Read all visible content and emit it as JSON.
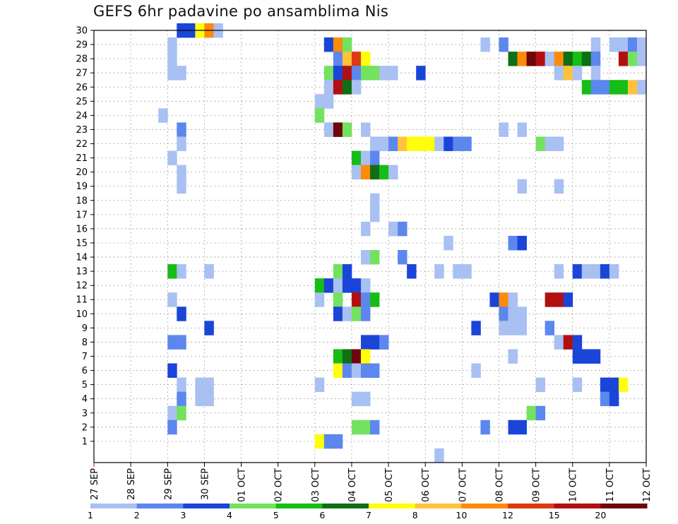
{
  "title": "GEFS 6hr padavine po ansamblima Nis",
  "chart_data": {
    "type": "heatmap",
    "title": "GEFS 6hr padavine po ansamblima Nis",
    "y_categories": [
      "1",
      "2",
      "3",
      "4",
      "5",
      "6",
      "7",
      "8",
      "9",
      "10",
      "11",
      "12",
      "13",
      "14",
      "15",
      "16",
      "17",
      "18",
      "19",
      "20",
      "21",
      "22",
      "23",
      "24",
      "25",
      "26",
      "27",
      "28",
      "29",
      "30"
    ],
    "x_tick_labels": [
      "27 SEP",
      "28 SEP",
      "29 SEP",
      "30 SEP",
      "01 OCT",
      "02 OCT",
      "03 OCT",
      "04 OCT",
      "05 OCT",
      "06 OCT",
      "07 OCT",
      "08 OCT",
      "09 OCT",
      "10 OCT",
      "11 OCT",
      "12 OCT"
    ],
    "x_unit": "6hr steps from 27 SEP 00Z",
    "xlim_steps": [
      0,
      60
    ],
    "grid": "dotted",
    "legend": {
      "position": "bottom",
      "labels": [
        "1",
        "2",
        "3",
        "4",
        "5",
        "6",
        "7",
        "8",
        "10",
        "12",
        "15",
        "20"
      ],
      "colors": [
        "#a9c0f2",
        "#5b87ee",
        "#1a45d8",
        "#73e25e",
        "#16bd16",
        "#0f6f14",
        "#ffff0a",
        "#ffc23a",
        "#ff8a0a",
        "#dc3a12",
        "#b21010",
        "#6e0707"
      ]
    },
    "cells": [
      [
        30,
        9,
        2
      ],
      [
        30,
        10,
        2
      ],
      [
        30,
        11,
        6
      ],
      [
        30,
        12,
        8
      ],
      [
        30,
        13,
        0
      ],
      [
        29,
        8,
        0
      ],
      [
        29,
        25,
        2
      ],
      [
        29,
        26,
        8
      ],
      [
        29,
        27,
        3
      ],
      [
        29,
        42,
        0
      ],
      [
        29,
        44,
        1
      ],
      [
        29,
        54,
        0
      ],
      [
        29,
        56,
        0
      ],
      [
        29,
        57,
        0
      ],
      [
        29,
        58,
        1
      ],
      [
        29,
        59,
        0
      ],
      [
        28,
        8,
        0
      ],
      [
        28,
        26,
        1
      ],
      [
        28,
        27,
        7
      ],
      [
        28,
        28,
        9
      ],
      [
        28,
        29,
        6
      ],
      [
        28,
        45,
        5
      ],
      [
        28,
        46,
        8
      ],
      [
        28,
        47,
        11
      ],
      [
        28,
        48,
        10
      ],
      [
        28,
        49,
        0
      ],
      [
        28,
        50,
        8
      ],
      [
        28,
        51,
        5
      ],
      [
        28,
        52,
        4
      ],
      [
        28,
        53,
        5
      ],
      [
        28,
        54,
        1
      ],
      [
        28,
        57,
        10
      ],
      [
        28,
        58,
        3
      ],
      [
        28,
        59,
        0
      ],
      [
        27,
        8,
        0
      ],
      [
        27,
        9,
        0
      ],
      [
        27,
        25,
        3
      ],
      [
        27,
        26,
        2
      ],
      [
        27,
        27,
        10
      ],
      [
        27,
        28,
        1
      ],
      [
        27,
        29,
        3
      ],
      [
        27,
        30,
        3
      ],
      [
        27,
        31,
        0
      ],
      [
        27,
        32,
        0
      ],
      [
        27,
        35,
        2
      ],
      [
        27,
        50,
        0
      ],
      [
        27,
        51,
        7
      ],
      [
        27,
        52,
        0
      ],
      [
        27,
        54,
        0
      ],
      [
        26,
        25,
        0
      ],
      [
        26,
        26,
        10
      ],
      [
        26,
        27,
        5
      ],
      [
        26,
        28,
        0
      ],
      [
        26,
        53,
        4
      ],
      [
        26,
        54,
        1
      ],
      [
        26,
        55,
        1
      ],
      [
        26,
        56,
        4
      ],
      [
        26,
        57,
        4
      ],
      [
        26,
        58,
        7
      ],
      [
        26,
        59,
        0
      ],
      [
        25,
        24,
        0
      ],
      [
        25,
        25,
        0
      ],
      [
        24,
        7,
        0
      ],
      [
        24,
        24,
        3
      ],
      [
        23,
        9,
        1
      ],
      [
        23,
        25,
        0
      ],
      [
        23,
        26,
        11
      ],
      [
        23,
        27,
        3
      ],
      [
        23,
        29,
        0
      ],
      [
        23,
        44,
        0
      ],
      [
        23,
        46,
        0
      ],
      [
        22,
        9,
        0
      ],
      [
        22,
        30,
        0
      ],
      [
        22,
        31,
        0
      ],
      [
        22,
        32,
        1
      ],
      [
        22,
        33,
        7
      ],
      [
        22,
        34,
        6
      ],
      [
        22,
        35,
        6
      ],
      [
        22,
        36,
        6
      ],
      [
        22,
        37,
        0
      ],
      [
        22,
        38,
        2
      ],
      [
        22,
        39,
        1
      ],
      [
        22,
        40,
        1
      ],
      [
        22,
        48,
        3
      ],
      [
        22,
        49,
        0
      ],
      [
        22,
        50,
        0
      ],
      [
        21,
        8,
        0
      ],
      [
        21,
        28,
        4
      ],
      [
        21,
        29,
        0
      ],
      [
        21,
        30,
        1
      ],
      [
        20,
        9,
        0
      ],
      [
        20,
        28,
        0
      ],
      [
        20,
        29,
        8
      ],
      [
        20,
        30,
        5
      ],
      [
        20,
        31,
        4
      ],
      [
        20,
        32,
        0
      ],
      [
        19,
        9,
        0
      ],
      [
        19,
        46,
        0
      ],
      [
        19,
        50,
        0
      ],
      [
        18,
        30,
        0
      ],
      [
        17,
        30,
        0
      ],
      [
        16,
        29,
        0
      ],
      [
        16,
        32,
        0
      ],
      [
        16,
        33,
        1
      ],
      [
        15,
        38,
        0
      ],
      [
        15,
        45,
        1
      ],
      [
        15,
        46,
        2
      ],
      [
        14,
        29,
        0
      ],
      [
        14,
        30,
        3
      ],
      [
        14,
        33,
        1
      ],
      [
        13,
        8,
        4
      ],
      [
        13,
        9,
        0
      ],
      [
        13,
        12,
        0
      ],
      [
        13,
        26,
        3
      ],
      [
        13,
        27,
        2
      ],
      [
        13,
        34,
        2
      ],
      [
        13,
        37,
        0
      ],
      [
        13,
        39,
        0
      ],
      [
        13,
        40,
        0
      ],
      [
        13,
        50,
        0
      ],
      [
        13,
        52,
        2
      ],
      [
        13,
        53,
        0
      ],
      [
        13,
        54,
        0
      ],
      [
        13,
        55,
        2
      ],
      [
        13,
        56,
        0
      ],
      [
        12,
        24,
        4
      ],
      [
        12,
        25,
        2
      ],
      [
        12,
        26,
        0
      ],
      [
        12,
        27,
        2
      ],
      [
        12,
        28,
        2
      ],
      [
        12,
        29,
        0
      ],
      [
        11,
        8,
        0
      ],
      [
        11,
        24,
        0
      ],
      [
        11,
        26,
        3
      ],
      [
        11,
        28,
        10
      ],
      [
        11,
        29,
        1
      ],
      [
        11,
        30,
        4
      ],
      [
        11,
        43,
        2
      ],
      [
        11,
        44,
        8
      ],
      [
        11,
        45,
        0
      ],
      [
        11,
        49,
        10
      ],
      [
        11,
        50,
        10
      ],
      [
        11,
        51,
        2
      ],
      [
        10,
        9,
        2
      ],
      [
        10,
        26,
        2
      ],
      [
        10,
        27,
        0
      ],
      [
        10,
        28,
        3
      ],
      [
        10,
        29,
        1
      ],
      [
        10,
        44,
        1
      ],
      [
        10,
        45,
        0
      ],
      [
        10,
        46,
        0
      ],
      [
        9,
        12,
        2
      ],
      [
        9,
        41,
        2
      ],
      [
        9,
        44,
        0
      ],
      [
        9,
        45,
        0
      ],
      [
        9,
        46,
        0
      ],
      [
        9,
        49,
        1
      ],
      [
        8,
        8,
        1
      ],
      [
        8,
        9,
        1
      ],
      [
        8,
        29,
        2
      ],
      [
        8,
        30,
        2
      ],
      [
        8,
        31,
        1
      ],
      [
        8,
        50,
        0
      ],
      [
        8,
        51,
        10
      ],
      [
        8,
        52,
        2
      ],
      [
        7,
        26,
        4
      ],
      [
        7,
        27,
        5
      ],
      [
        7,
        28,
        11
      ],
      [
        7,
        29,
        6
      ],
      [
        7,
        45,
        0
      ],
      [
        7,
        52,
        2
      ],
      [
        7,
        53,
        2
      ],
      [
        7,
        54,
        2
      ],
      [
        6,
        8,
        2
      ],
      [
        6,
        26,
        6
      ],
      [
        6,
        27,
        1
      ],
      [
        6,
        28,
        0
      ],
      [
        6,
        29,
        1
      ],
      [
        6,
        30,
        1
      ],
      [
        6,
        41,
        0
      ],
      [
        5,
        9,
        0
      ],
      [
        5,
        11,
        0
      ],
      [
        5,
        12,
        0
      ],
      [
        5,
        24,
        0
      ],
      [
        5,
        48,
        0
      ],
      [
        5,
        52,
        0
      ],
      [
        5,
        55,
        2
      ],
      [
        5,
        56,
        2
      ],
      [
        5,
        57,
        6
      ],
      [
        4,
        9,
        1
      ],
      [
        4,
        11,
        0
      ],
      [
        4,
        12,
        0
      ],
      [
        4,
        28,
        0
      ],
      [
        4,
        29,
        0
      ],
      [
        4,
        55,
        1
      ],
      [
        4,
        56,
        2
      ],
      [
        3,
        8,
        0
      ],
      [
        3,
        9,
        3
      ],
      [
        3,
        47,
        3
      ],
      [
        3,
        48,
        1
      ],
      [
        2,
        8,
        1
      ],
      [
        2,
        28,
        3
      ],
      [
        2,
        29,
        3
      ],
      [
        2,
        30,
        1
      ],
      [
        2,
        42,
        1
      ],
      [
        2,
        45,
        2
      ],
      [
        2,
        46,
        2
      ],
      [
        1,
        24,
        6
      ],
      [
        1,
        25,
        1
      ],
      [
        1,
        26,
        1
      ],
      [
        0,
        37,
        0
      ]
    ]
  }
}
